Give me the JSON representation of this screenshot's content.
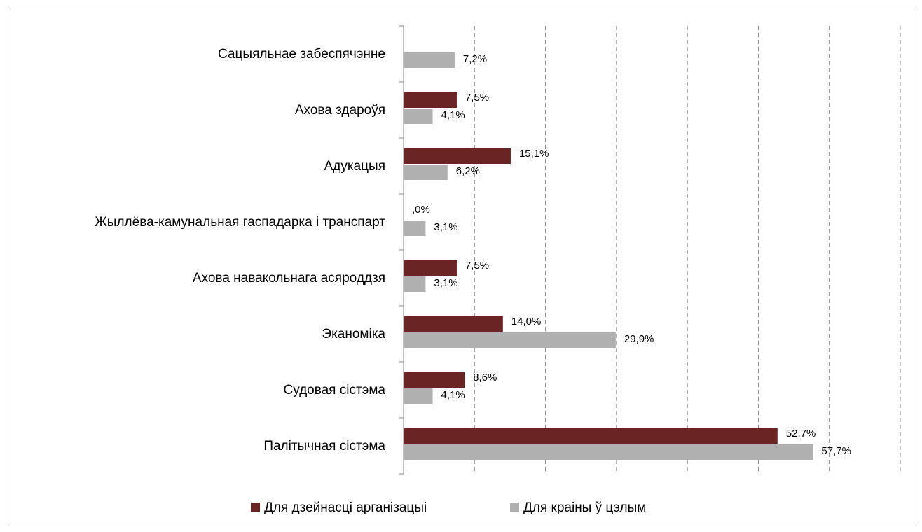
{
  "chart_data": {
    "type": "hbar",
    "categories": [
      "Сацыяльнае забеспячэнне",
      "Ахова здароўя",
      "Адукацыя",
      "Жыллёва-камунальная гаспадарка і транспарт",
      "Ахова навакольнага асяроддзя",
      "Эканоміка",
      "Судовая сістэма",
      "Палітычная сістэма"
    ],
    "series": [
      {
        "name": "Для дзейнасці арганізацыі",
        "color": "#6b2424",
        "values": [
          null,
          7.5,
          15.1,
          0,
          7.5,
          14.0,
          8.6,
          52.7
        ],
        "value_labels": [
          null,
          "7,5%",
          "15,1%",
          ",0%",
          "7,5%",
          "14,0%",
          "8,6%",
          "52,7%"
        ]
      },
      {
        "name": "Для краіны ў цэлым",
        "color": "#b0b0b0",
        "values": [
          7.2,
          4.1,
          6.2,
          3.1,
          3.1,
          29.9,
          4.1,
          57.7
        ],
        "value_labels": [
          "7,2%",
          "4,1%",
          "6,2%",
          "3,1%",
          "3,1%",
          "29,9%",
          "4,1%",
          "57,7%"
        ]
      }
    ],
    "xlim": [
      0,
      70
    ],
    "xticks": [
      0,
      10,
      20,
      30,
      40,
      50,
      60,
      70
    ],
    "grid": true,
    "legend": "bottom"
  }
}
